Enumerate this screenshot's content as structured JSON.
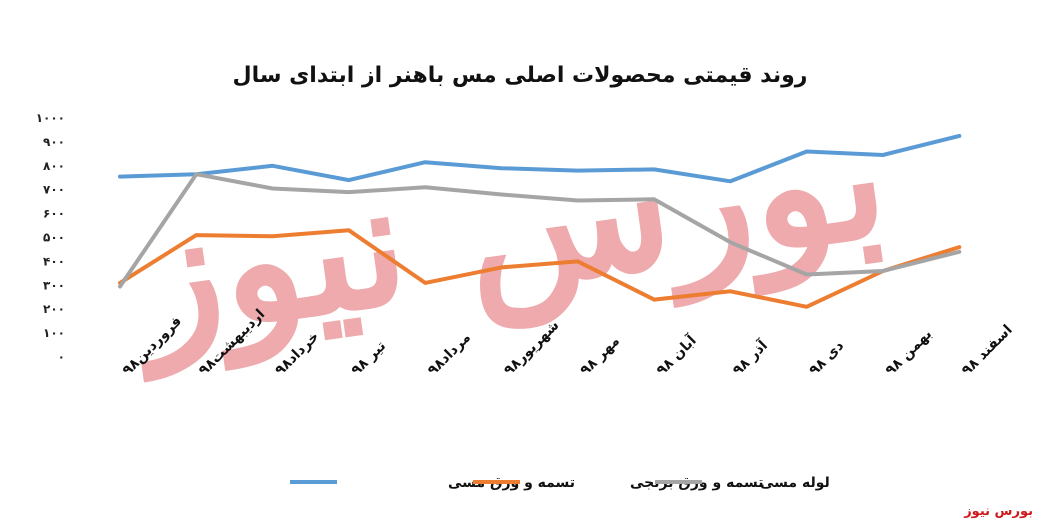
{
  "source_label": "بورس نیوز",
  "watermark_text": "بورس نیوز",
  "chart_data": {
    "type": "line",
    "title": "روند قیمتی محصولات اصلی مس باهنر از ابتدای سال",
    "xlabel": "",
    "ylabel": "",
    "ylim": [
      0,
      1000
    ],
    "yticks": [
      "۰",
      "۱۰۰",
      "۲۰۰",
      "۳۰۰",
      "۴۰۰",
      "۵۰۰",
      "۶۰۰",
      "۷۰۰",
      "۸۰۰",
      "۹۰۰",
      "۱۰۰۰"
    ],
    "categories": [
      "فروردین۹۸",
      "اردیبهشت۹۸",
      "خرداد۹۸",
      "تیر ۹۸",
      "مرداد۹۸",
      "شهریور۹۸",
      "مهر ۹۸",
      "آبان ۹۸",
      "آذر ۹۸",
      "دی ۹۸",
      "بهمن ۹۸",
      "اسفند ۹۸"
    ],
    "grid": false,
    "legend_position": "bottom",
    "series": [
      {
        "name": "تسمه و ورق مسی",
        "color": "#5b9bd5",
        "values": [
          755,
          765,
          800,
          740,
          815,
          790,
          780,
          785,
          735,
          860,
          845,
          925
        ]
      },
      {
        "name": "تسمه و ورق برنجی",
        "color": "#ed7d31",
        "values": [
          310,
          510,
          505,
          530,
          310,
          375,
          400,
          240,
          275,
          210,
          360,
          460
        ]
      },
      {
        "name": "لوله مسی",
        "color": "#a5a5a5",
        "values": [
          295,
          765,
          705,
          690,
          710,
          680,
          655,
          660,
          480,
          345,
          360,
          440
        ]
      }
    ]
  }
}
